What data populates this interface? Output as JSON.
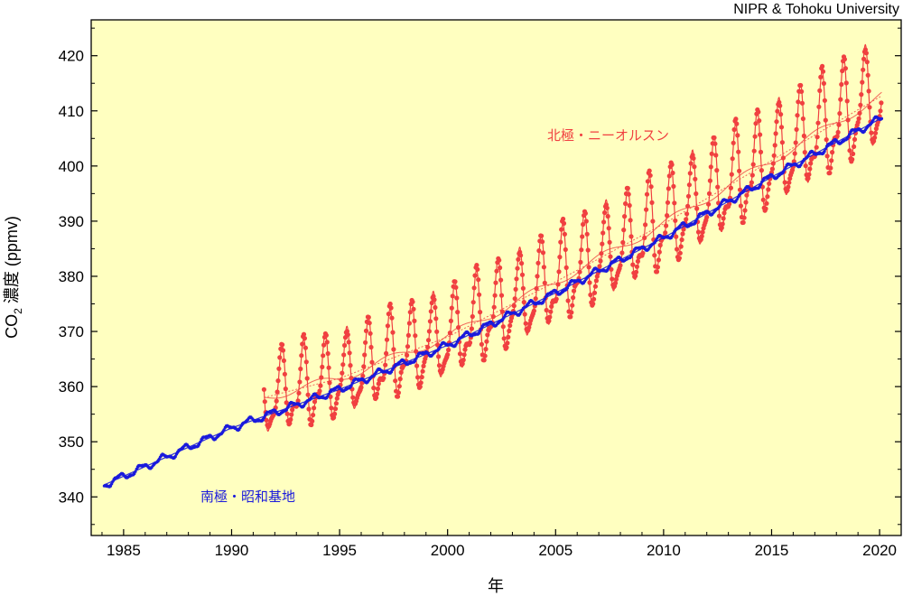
{
  "chart_data": {
    "type": "line",
    "credit": "NIPR & Tohoku University",
    "xlabel": "年",
    "ylabel_main": "CO",
    "ylabel_sub": "2",
    "ylabel_rest": " 濃度 (ppmv)",
    "xlim": [
      1983.5,
      2021.0
    ],
    "ylim": [
      333.0,
      426.5
    ],
    "xticks": [
      1985,
      1990,
      1995,
      2000,
      2005,
      2010,
      2015,
      2020
    ],
    "yticks": [
      340,
      350,
      360,
      370,
      380,
      390,
      400,
      410,
      420
    ],
    "series": [
      {
        "name": "北極・ニーオルスン",
        "color": "#f04040",
        "start": 1991.5,
        "end": 2020.1,
        "trend": [
          [
            1991.5,
            358.0
          ],
          [
            1995,
            361.5
          ],
          [
            2000,
            369.0
          ],
          [
            2005,
            379.0
          ],
          [
            2010,
            389.5
          ],
          [
            2015,
            401.0
          ],
          [
            2020,
            412.5
          ]
        ],
        "seasonal_amplitude": 8.5
      },
      {
        "name": "南極・昭和基地",
        "color": "#1a1adc",
        "start": 1984.1,
        "end": 2020.1,
        "trend": [
          [
            1984,
            342.0
          ],
          [
            1990,
            352.5
          ],
          [
            1995,
            359.5
          ],
          [
            2000,
            367.5
          ],
          [
            2005,
            377.0
          ],
          [
            2010,
            387.0
          ],
          [
            2015,
            398.0
          ],
          [
            2020,
            408.5
          ]
        ],
        "seasonal_amplitude": 0.6
      }
    ]
  }
}
